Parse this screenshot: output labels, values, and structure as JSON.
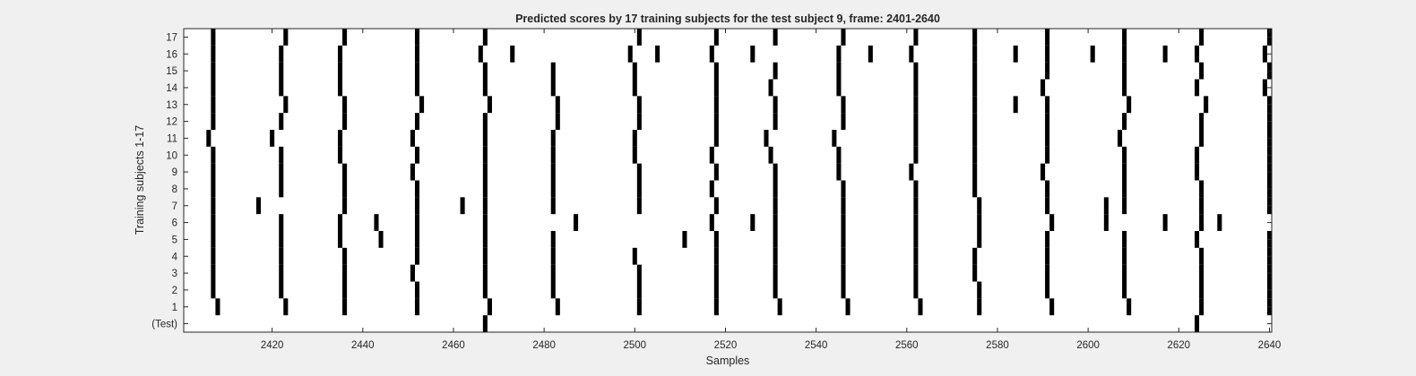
{
  "chart_data": {
    "type": "heatmap",
    "title": "Predicted scores by 17 training subjects for the test subject 9, frame: 2401-2640",
    "xlabel": "Samples",
    "ylabel": "Training subjects 1-17",
    "xlim": [
      2401,
      2640
    ],
    "x_ticks": [
      2420,
      2440,
      2460,
      2480,
      2500,
      2520,
      2540,
      2560,
      2580,
      2600,
      2620,
      2640
    ],
    "y_tick_labels": [
      "(Test)",
      "1",
      "2",
      "3",
      "4",
      "5",
      "6",
      "7",
      "8",
      "9",
      "10",
      "11",
      "12",
      "13",
      "14",
      "15",
      "16",
      "17"
    ],
    "background_color": "#ffffff",
    "mark_color": "#000000",
    "rows": [
      {
        "label": "(Test)",
        "events": [
          2467,
          2624
        ]
      },
      {
        "label": "1",
        "events": [
          2408,
          2423,
          2436,
          2452,
          2468,
          2483,
          2501,
          2518,
          2532,
          2547,
          2563,
          2576,
          2592,
          2609,
          2625,
          2640
        ]
      },
      {
        "label": "2",
        "events": [
          2407,
          2422,
          2436,
          2452,
          2467,
          2482,
          2501,
          2518,
          2531,
          2546,
          2562,
          2576,
          2591,
          2608,
          2625,
          2640
        ]
      },
      {
        "label": "3",
        "events": [
          2407,
          2422,
          2436,
          2451,
          2467,
          2482,
          2501,
          2518,
          2531,
          2546,
          2562,
          2575,
          2591,
          2608,
          2625,
          2640
        ]
      },
      {
        "label": "4",
        "events": [
          2407,
          2422,
          2436,
          2452,
          2467,
          2482,
          2500,
          2518,
          2531,
          2546,
          2562,
          2575,
          2591,
          2608,
          2625,
          2640
        ]
      },
      {
        "label": "5",
        "events": [
          2407,
          2422,
          2435,
          2444,
          2452,
          2467,
          2482,
          2511,
          2518,
          2531,
          2546,
          2562,
          2576,
          2591,
          2608,
          2624,
          2640
        ]
      },
      {
        "label": "6",
        "events": [
          2407,
          2422,
          2435,
          2443,
          2452,
          2467,
          2487,
          2517,
          2526,
          2531,
          2546,
          2562,
          2576,
          2592,
          2604,
          2617,
          2625,
          2629
        ]
      },
      {
        "label": "7",
        "events": [
          2407,
          2417,
          2436,
          2452,
          2462,
          2467,
          2482,
          2501,
          2518,
          2531,
          2546,
          2562,
          2576,
          2591,
          2604,
          2608,
          2625,
          2640
        ]
      },
      {
        "label": "8",
        "events": [
          2407,
          2422,
          2436,
          2452,
          2467,
          2482,
          2501,
          2517,
          2531,
          2546,
          2562,
          2575,
          2591,
          2608,
          2625,
          2640
        ]
      },
      {
        "label": "9",
        "events": [
          2407,
          2422,
          2436,
          2451,
          2467,
          2482,
          2501,
          2518,
          2531,
          2545,
          2561,
          2575,
          2590,
          2608,
          2624,
          2640
        ]
      },
      {
        "label": "10",
        "events": [
          2407,
          2422,
          2435,
          2452,
          2467,
          2482,
          2500,
          2517,
          2530,
          2545,
          2562,
          2575,
          2591,
          2608,
          2624,
          2640
        ]
      },
      {
        "label": "11",
        "events": [
          2406,
          2420,
          2435,
          2451,
          2467,
          2482,
          2500,
          2518,
          2529,
          2544,
          2562,
          2575,
          2591,
          2607,
          2625,
          2640
        ]
      },
      {
        "label": "12",
        "events": [
          2407,
          2422,
          2436,
          2452,
          2467,
          2483,
          2501,
          2518,
          2531,
          2546,
          2562,
          2575,
          2591,
          2608,
          2625,
          2640
        ]
      },
      {
        "label": "13",
        "events": [
          2407,
          2423,
          2436,
          2453,
          2468,
          2483,
          2501,
          2518,
          2531,
          2546,
          2562,
          2575,
          2584,
          2591,
          2609,
          2626,
          2640
        ]
      },
      {
        "label": "14",
        "events": [
          2407,
          2422,
          2435,
          2452,
          2467,
          2482,
          2500,
          2518,
          2530,
          2545,
          2562,
          2575,
          2590,
          2608,
          2624,
          2639
        ]
      },
      {
        "label": "15",
        "events": [
          2407,
          2422,
          2435,
          2452,
          2467,
          2482,
          2500,
          2518,
          2531,
          2545,
          2562,
          2575,
          2591,
          2608,
          2625,
          2640
        ]
      },
      {
        "label": "16",
        "events": [
          2407,
          2422,
          2435,
          2452,
          2466,
          2473,
          2499,
          2505,
          2517,
          2526,
          2545,
          2552,
          2561,
          2575,
          2584,
          2591,
          2601,
          2608,
          2617,
          2624,
          2639
        ]
      },
      {
        "label": "17",
        "events": [
          2407,
          2423,
          2436,
          2452,
          2467,
          2501,
          2518,
          2531,
          2546,
          2562,
          2575,
          2591,
          2608,
          2625,
          2640
        ]
      }
    ]
  }
}
